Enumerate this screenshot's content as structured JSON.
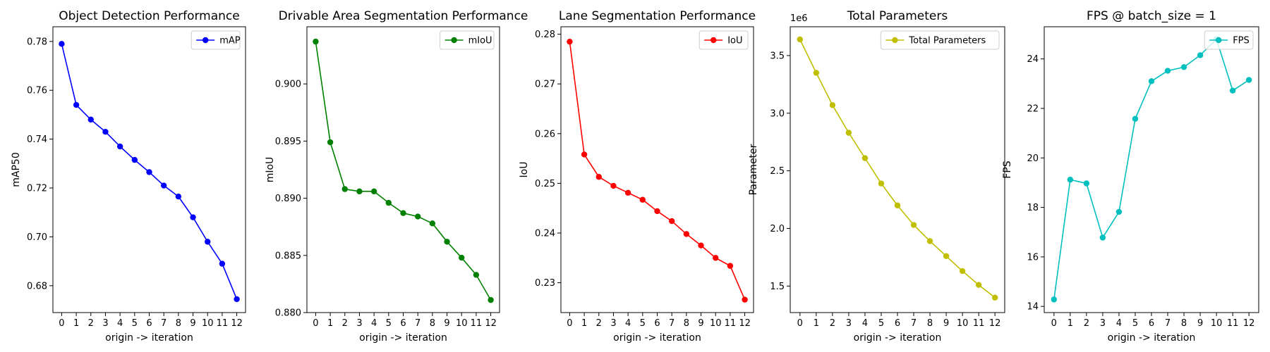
{
  "chart_data": [
    {
      "type": "line",
      "title": "Object Detection Performance",
      "xlabel": "origin -> iteration",
      "ylabel": "mAP50",
      "x": [
        0,
        1,
        2,
        3,
        4,
        5,
        6,
        7,
        8,
        9,
        10,
        11,
        12
      ],
      "ylim": [
        0.669,
        0.786
      ],
      "yticks": [
        0.68,
        0.7,
        0.72,
        0.74,
        0.76,
        0.78
      ],
      "ytick_decimals": 2,
      "legend_position": "upper right",
      "series": [
        {
          "name": "mAP",
          "color": "#0000ff",
          "values": [
            0.779,
            0.754,
            0.748,
            0.743,
            0.737,
            0.7315,
            0.7265,
            0.721,
            0.7165,
            0.708,
            0.698,
            0.689,
            0.6745
          ]
        }
      ]
    },
    {
      "type": "line",
      "title": "Drivable Area Segmentation Performance",
      "xlabel": "origin -> iteration",
      "ylabel": "mIoU",
      "x": [
        0,
        1,
        2,
        3,
        4,
        5,
        6,
        7,
        8,
        9,
        10,
        11,
        12
      ],
      "ylim": [
        0.88,
        0.905
      ],
      "yticks": [
        0.88,
        0.885,
        0.89,
        0.895,
        0.9
      ],
      "ytick_decimals": 3,
      "legend_position": "upper right",
      "series": [
        {
          "name": "mIoU",
          "color": "#008000",
          "values": [
            0.9037,
            0.8949,
            0.8908,
            0.8906,
            0.8906,
            0.8896,
            0.8887,
            0.8884,
            0.8878,
            0.8862,
            0.8848,
            0.8833,
            0.8811
          ]
        }
      ]
    },
    {
      "type": "line",
      "title": "Lane Segmentation Performance",
      "xlabel": "origin -> iteration",
      "ylabel": "IoU",
      "x": [
        0,
        1,
        2,
        3,
        4,
        5,
        6,
        7,
        8,
        9,
        10,
        11,
        12
      ],
      "ylim": [
        0.224,
        0.2815
      ],
      "yticks": [
        0.23,
        0.24,
        0.25,
        0.26,
        0.27,
        0.28
      ],
      "ytick_decimals": 2,
      "legend_position": "upper right",
      "series": [
        {
          "name": "IoU",
          "color": "#ff0000",
          "values": [
            0.2785,
            0.2558,
            0.2513,
            0.2495,
            0.2481,
            0.2467,
            0.2444,
            0.2424,
            0.2398,
            0.2375,
            0.235,
            0.2334,
            0.2266
          ]
        }
      ]
    },
    {
      "type": "line",
      "title": "Total Parameters",
      "xlabel": "origin -> iteration",
      "ylabel": "Parameter",
      "offset_text": "1e6",
      "x": [
        0,
        1,
        2,
        3,
        4,
        5,
        6,
        7,
        8,
        9,
        10,
        11,
        12
      ],
      "ylim": [
        1.27,
        3.75
      ],
      "yticks": [
        1.5,
        2.0,
        2.5,
        3.0,
        3.5
      ],
      "ytick_decimals": 1,
      "legend_position": "upper right",
      "series": [
        {
          "name": "Total Parameters",
          "color": "#bfbf00",
          "values": [
            3.64,
            3.35,
            3.07,
            2.83,
            2.61,
            2.39,
            2.2,
            2.03,
            1.89,
            1.76,
            1.63,
            1.51,
            1.4
          ]
        }
      ]
    },
    {
      "type": "line",
      "title": "FPS @ batch_size = 1",
      "xlabel": "origin -> iteration",
      "ylabel": "FPS",
      "x": [
        0,
        1,
        2,
        3,
        4,
        5,
        6,
        7,
        8,
        9,
        10,
        11,
        12
      ],
      "ylim": [
        13.75,
        25.3
      ],
      "yticks": [
        14,
        16,
        18,
        20,
        22,
        24
      ],
      "ytick_decimals": 0,
      "legend_position": "upper right",
      "series": [
        {
          "name": "FPS",
          "color": "#00bfbf",
          "values": [
            14.28,
            19.12,
            18.97,
            16.78,
            17.82,
            21.58,
            23.1,
            23.52,
            23.67,
            24.15,
            24.8,
            22.72,
            23.15
          ]
        }
      ]
    }
  ]
}
